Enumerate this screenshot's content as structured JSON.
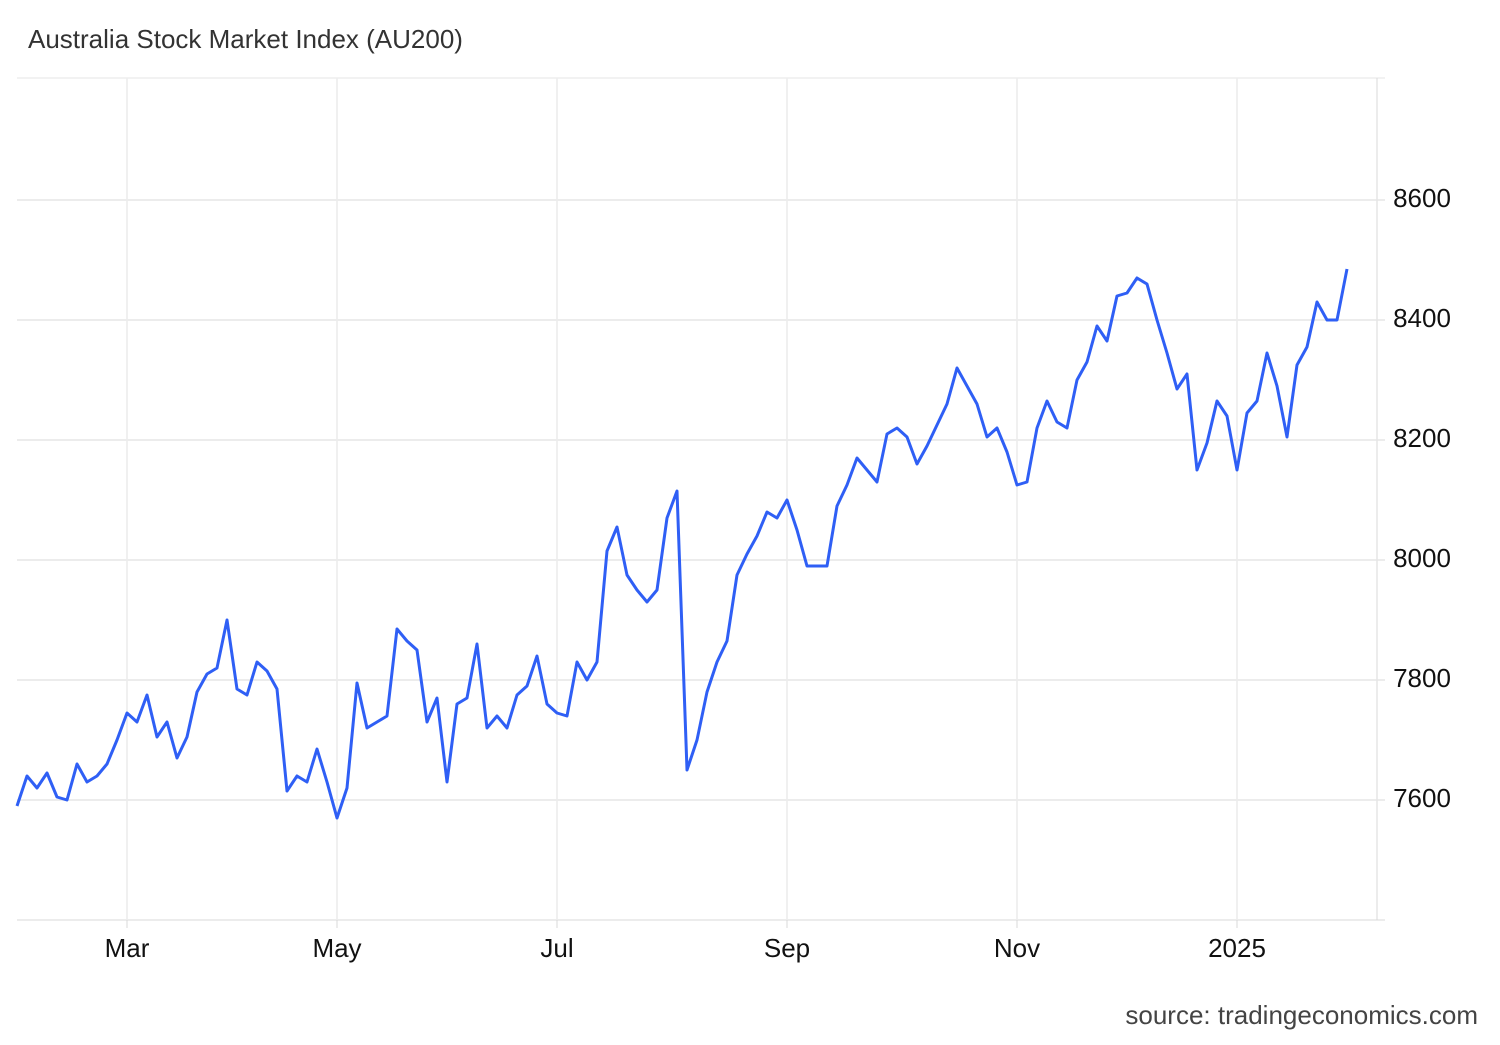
{
  "chart_data": {
    "type": "line",
    "title": "Australia Stock Market Index (AU200)",
    "source": "source: tradingeconomics.com",
    "categories": [
      null,
      null,
      null,
      null,
      null,
      null,
      null,
      null,
      null,
      null,
      null,
      "Mar",
      null,
      null,
      null,
      null,
      null,
      null,
      null,
      null,
      null,
      null,
      null,
      null,
      null,
      null,
      null,
      null,
      null,
      null,
      null,
      null,
      "May",
      null,
      null,
      null,
      null,
      null,
      null,
      null,
      null,
      null,
      null,
      null,
      null,
      null,
      null,
      null,
      null,
      null,
      null,
      null,
      null,
      null,
      "Jul",
      null,
      null,
      null,
      null,
      null,
      null,
      null,
      null,
      null,
      null,
      null,
      null,
      null,
      null,
      null,
      null,
      null,
      null,
      null,
      null,
      null,
      null,
      "Sep",
      null,
      null,
      null,
      null,
      null,
      null,
      null,
      null,
      null,
      null,
      null,
      null,
      null,
      null,
      null,
      null,
      null,
      null,
      null,
      null,
      null,
      null,
      "Nov",
      null,
      null,
      null,
      null,
      null,
      null,
      null,
      null,
      null,
      null,
      null,
      null,
      null,
      null,
      null,
      null,
      null,
      null,
      null,
      null,
      null,
      "2025",
      null,
      null,
      null,
      null,
      null,
      null,
      null,
      null,
      null,
      null,
      null
    ],
    "values": [
      7590,
      7640,
      7620,
      7645,
      7605,
      7600,
      7660,
      7630,
      7640,
      7660,
      7700,
      7745,
      7730,
      7775,
      7705,
      7730,
      7670,
      7705,
      7780,
      7810,
      7820,
      7900,
      7785,
      7775,
      7830,
      7815,
      7785,
      7615,
      7640,
      7630,
      7685,
      7630,
      7570,
      7620,
      7795,
      7720,
      7730,
      7740,
      7885,
      7865,
      7850,
      7730,
      7770,
      7630,
      7760,
      7770,
      7860,
      7720,
      7740,
      7720,
      7775,
      7790,
      7840,
      7760,
      7745,
      7740,
      7830,
      7800,
      7830,
      8015,
      8055,
      7975,
      7950,
      7930,
      7950,
      8070,
      8115,
      7650,
      7700,
      7780,
      7830,
      7865,
      7975,
      8010,
      8040,
      8080,
      8070,
      8100,
      8050,
      7990,
      7990,
      7990,
      8090,
      8125,
      8170,
      8150,
      8130,
      8210,
      8220,
      8205,
      8160,
      8190,
      8225,
      8260,
      8320,
      8290,
      8260,
      8205,
      8220,
      8180,
      8125,
      8130,
      8220,
      8265,
      8230,
      8220,
      8300,
      8330,
      8390,
      8365,
      8440,
      8445,
      8470,
      8460,
      8400,
      8345,
      8285,
      8310,
      8150,
      8195,
      8265,
      8240,
      8150,
      8245,
      8265,
      8345,
      8290,
      8205,
      8325,
      8355,
      8430,
      8400,
      8400,
      8485
    ],
    "color": "#2f5ff5",
    "ylim": [
      7400,
      8800
    ],
    "yticks": [
      7600,
      7800,
      8000,
      8200,
      8400,
      8600
    ],
    "grid": true
  }
}
